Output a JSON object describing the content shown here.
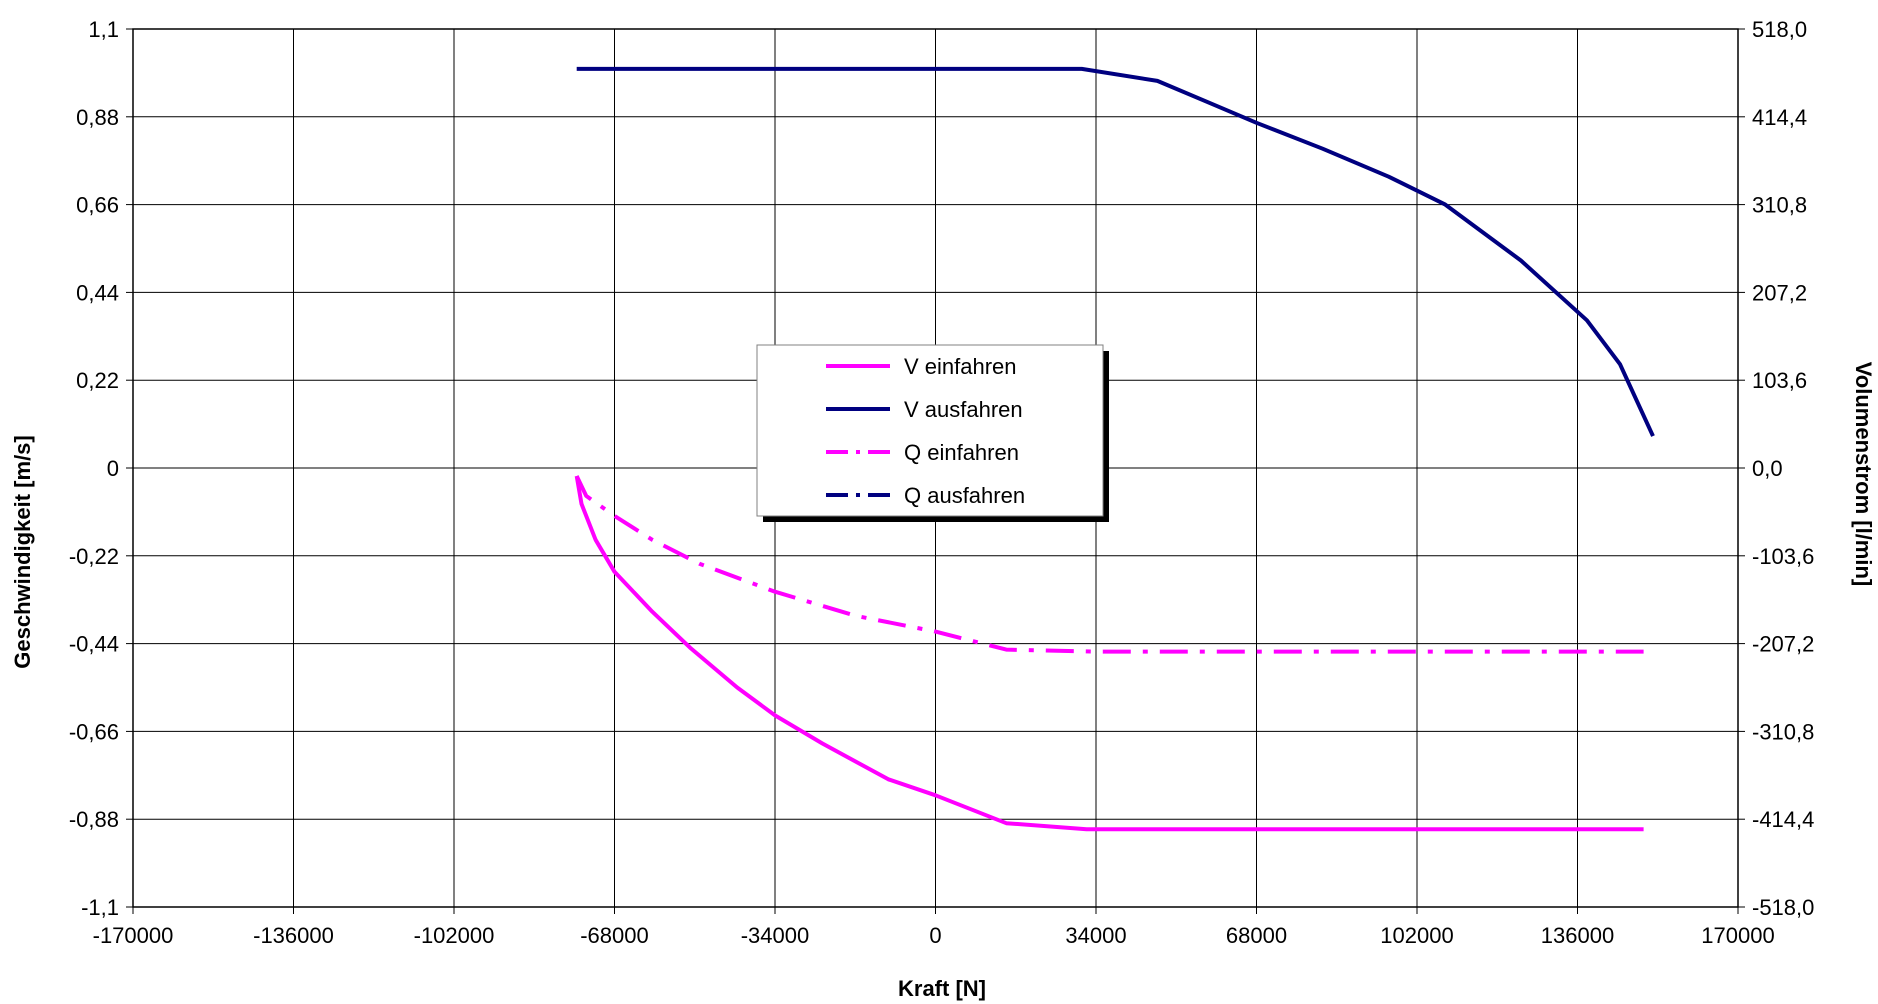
{
  "chart_data": {
    "type": "line",
    "xlabel": "Kraft [N]",
    "ylabel": "Geschwindigkeit [m/s]",
    "y2label": "Volumenstrom [l/min]",
    "xlim": [
      -170000,
      170000
    ],
    "ylim": [
      -1.1,
      1.1
    ],
    "y2lim": [
      -518.0,
      518.0
    ],
    "grid": true,
    "legend_position": "center",
    "x_ticks": [
      "-170000",
      "-136000",
      "-102000",
      "-68000",
      "-34000",
      "0",
      "34000",
      "68000",
      "102000",
      "136000",
      "170000"
    ],
    "y_ticks": [
      "1,1",
      "0,88",
      "0,66",
      "0,44",
      "0,22",
      "0",
      "-0,22",
      "-0,44",
      "-0,66",
      "-0,88",
      "-1,1"
    ],
    "y2_ticks": [
      "518,0",
      "414,4",
      "310,8",
      "207,2",
      "103,6",
      "0,0",
      "-103,6",
      "-207,2",
      "-310,8",
      "-414,4",
      "-518,0"
    ],
    "series": [
      {
        "name": "V einfahren",
        "color": "#ff00ff",
        "dash": "solid",
        "axis": "left",
        "points": [
          [
            -76000,
            -0.02
          ],
          [
            -75000,
            -0.09
          ],
          [
            -72000,
            -0.18
          ],
          [
            -68000,
            -0.26
          ],
          [
            -60000,
            -0.36
          ],
          [
            -52000,
            -0.45
          ],
          [
            -42000,
            -0.55
          ],
          [
            -34000,
            -0.62
          ],
          [
            -24000,
            -0.69
          ],
          [
            -10000,
            -0.78
          ],
          [
            0,
            -0.82
          ],
          [
            15000,
            -0.89
          ],
          [
            32000,
            -0.905
          ],
          [
            150000,
            -0.905
          ]
        ]
      },
      {
        "name": "V ausfahren",
        "color": "#000080",
        "dash": "solid",
        "axis": "left",
        "points": [
          [
            -76000,
            1.0
          ],
          [
            -40000,
            1.0
          ],
          [
            0,
            1.0
          ],
          [
            31000,
            1.0
          ],
          [
            47000,
            0.97
          ],
          [
            57000,
            0.92
          ],
          [
            68000,
            0.865
          ],
          [
            82000,
            0.8
          ],
          [
            96000,
            0.73
          ],
          [
            108000,
            0.66
          ],
          [
            124000,
            0.52
          ],
          [
            138000,
            0.37
          ],
          [
            145000,
            0.26
          ],
          [
            152000,
            0.08
          ]
        ]
      },
      {
        "name": "Q einfahren",
        "color": "#ff00ff",
        "dash": "dashdot",
        "axis": "left",
        "points": [
          [
            -76000,
            -0.02
          ],
          [
            -74000,
            -0.07
          ],
          [
            -68000,
            -0.12
          ],
          [
            -60000,
            -0.18
          ],
          [
            -50000,
            -0.24
          ],
          [
            -34000,
            -0.31
          ],
          [
            -17000,
            -0.37
          ],
          [
            0,
            -0.41
          ],
          [
            15000,
            -0.455
          ],
          [
            34000,
            -0.46
          ],
          [
            150000,
            -0.46
          ]
        ]
      },
      {
        "name": "Q ausfahren",
        "color": "#000080",
        "dash": "dashdot",
        "axis": "left",
        "points": []
      }
    ]
  }
}
